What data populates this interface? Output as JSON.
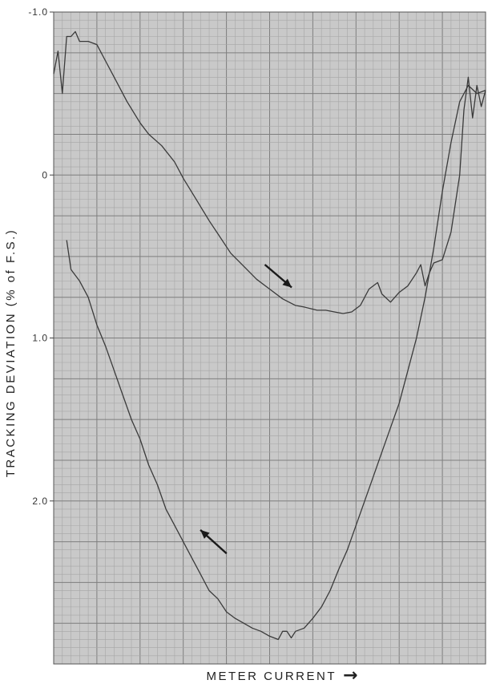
{
  "chart_data": {
    "type": "line",
    "title": "",
    "xlabel": "METER CURRENT",
    "xlabel_arrow": "→",
    "ylabel": "TRACKING DEVIATION (% of F.S.)",
    "x_ticks_labeled": false,
    "y_inverted": true,
    "ylim": [
      -1.0,
      3.0
    ],
    "xlim": [
      0,
      100
    ],
    "y_ticks": [
      {
        "value": -1.0,
        "label": "-1.0"
      },
      {
        "value": 0,
        "label": "0"
      },
      {
        "value": 1.0,
        "label": "1.0"
      },
      {
        "value": 2.0,
        "label": "2.0"
      }
    ],
    "grid": true,
    "colors": {
      "paper": "#c9c9c9",
      "grid_minor": "#a6a6a6",
      "grid_major": "#7e7e7e",
      "trace": "#3a3a3a"
    },
    "series": [
      {
        "direction": "increasing",
        "arrow_at": [
          52,
          0.62
        ],
        "x": [
          0,
          1,
          2,
          3,
          4,
          5,
          6,
          8,
          10,
          12,
          14,
          17,
          20,
          22,
          25,
          28,
          30,
          33,
          36,
          38,
          41,
          44,
          47,
          50,
          53,
          56,
          58,
          61,
          63,
          65,
          67,
          69,
          71,
          73,
          75,
          76,
          78,
          80,
          82,
          84,
          85,
          86,
          87,
          88,
          90,
          92,
          94,
          95,
          96,
          97,
          98,
          99,
          100
        ],
        "y": [
          -0.62,
          -0.76,
          -0.5,
          -0.85,
          -0.85,
          -0.88,
          -0.82,
          -0.82,
          -0.8,
          -0.7,
          -0.6,
          -0.45,
          -0.32,
          -0.25,
          -0.18,
          -0.08,
          0.02,
          0.15,
          0.28,
          0.36,
          0.48,
          0.56,
          0.64,
          0.7,
          0.76,
          0.8,
          0.81,
          0.83,
          0.83,
          0.84,
          0.85,
          0.84,
          0.8,
          0.7,
          0.66,
          0.73,
          0.78,
          0.72,
          0.68,
          0.6,
          0.55,
          0.68,
          0.6,
          0.54,
          0.52,
          0.35,
          0.0,
          -0.4,
          -0.6,
          -0.35,
          -0.55,
          -0.42,
          -0.52
        ]
      },
      {
        "direction": "decreasing",
        "arrow_at": [
          37,
          2.25
        ],
        "x": [
          3,
          4,
          6,
          8,
          10,
          12,
          14,
          16,
          18,
          20,
          22,
          24,
          26,
          28,
          30,
          32,
          34,
          36,
          38,
          40,
          42,
          44,
          46,
          48,
          50,
          52,
          53,
          54,
          55,
          56,
          58,
          60,
          62,
          64,
          66,
          68,
          70,
          72,
          74,
          76,
          78,
          80,
          82,
          84,
          86,
          88,
          90,
          92,
          94,
          96,
          98,
          100
        ],
        "y": [
          0.4,
          0.58,
          0.65,
          0.75,
          0.92,
          1.05,
          1.2,
          1.35,
          1.5,
          1.62,
          1.78,
          1.9,
          2.05,
          2.15,
          2.25,
          2.35,
          2.45,
          2.55,
          2.6,
          2.68,
          2.72,
          2.75,
          2.78,
          2.8,
          2.83,
          2.85,
          2.8,
          2.8,
          2.84,
          2.8,
          2.78,
          2.72,
          2.65,
          2.55,
          2.42,
          2.3,
          2.15,
          2.0,
          1.85,
          1.7,
          1.55,
          1.4,
          1.2,
          1.0,
          0.75,
          0.45,
          0.1,
          -0.2,
          -0.45,
          -0.55,
          -0.5,
          -0.52
        ]
      }
    ]
  }
}
